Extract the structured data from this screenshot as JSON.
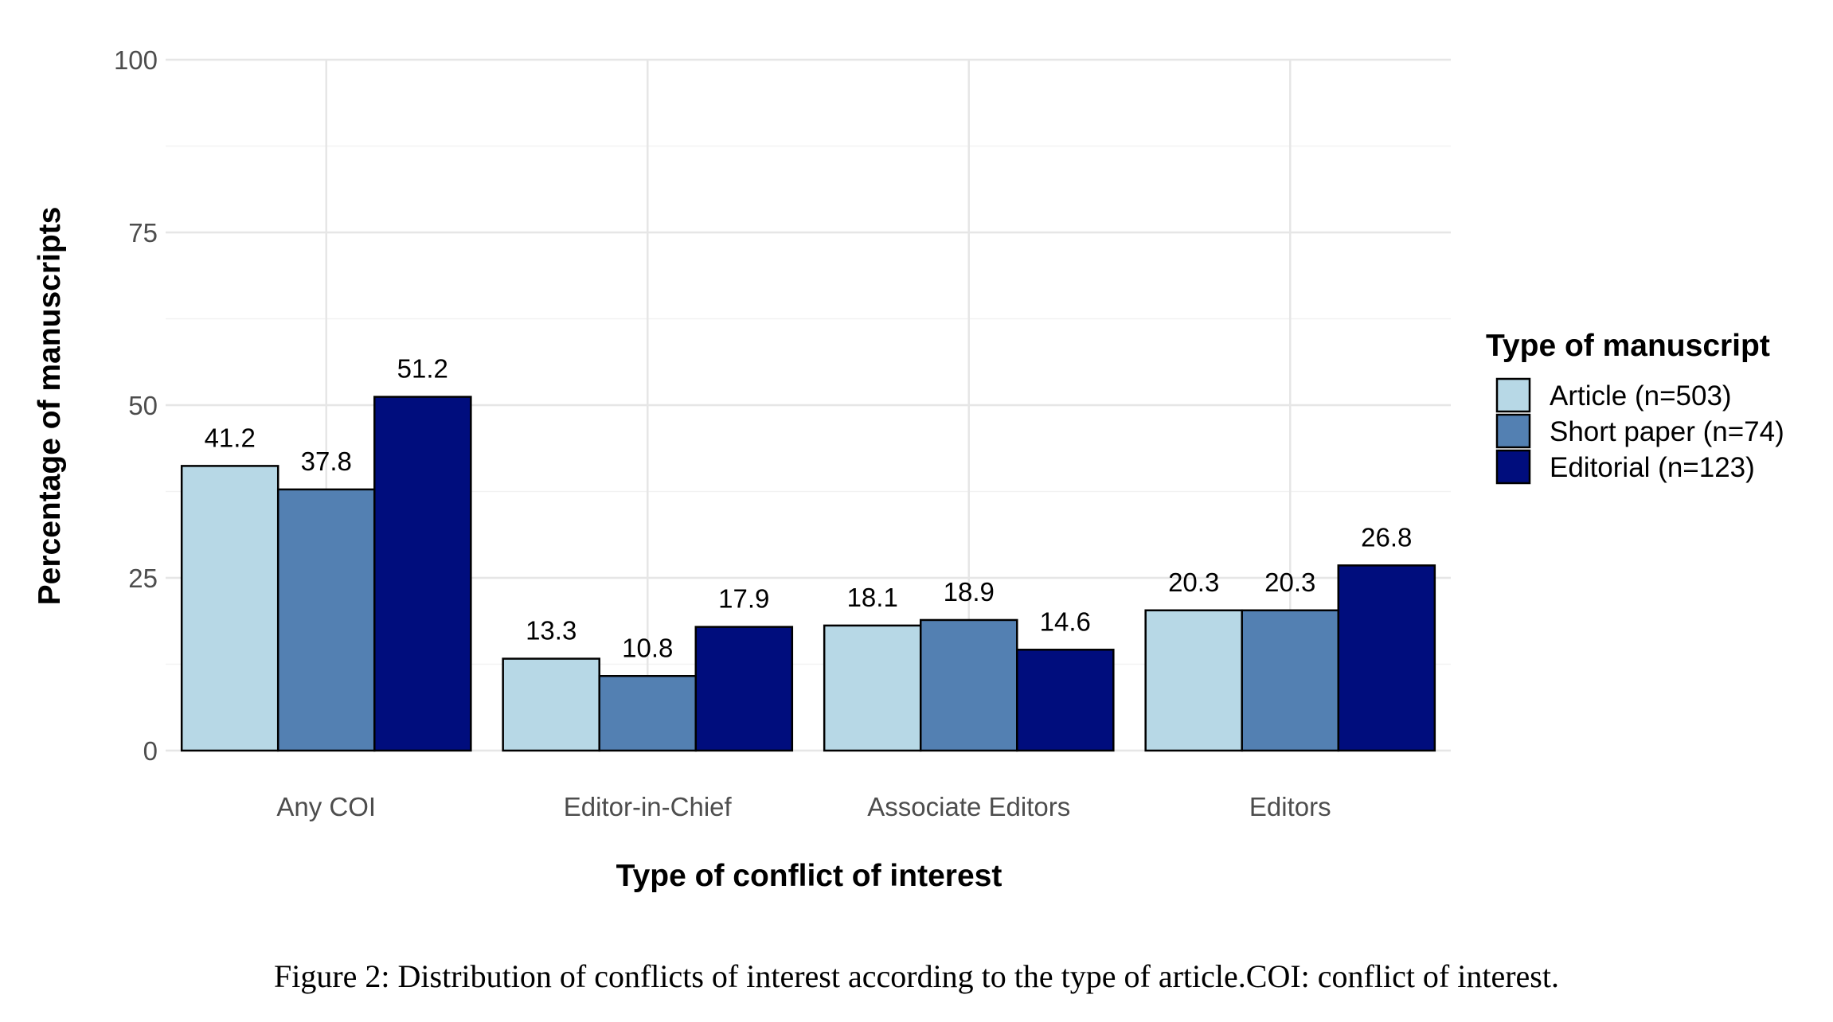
{
  "chart_data": {
    "type": "bar",
    "categories": [
      "Any COI",
      "Editor-in-Chief",
      "Associate Editors",
      "Editors"
    ],
    "series": [
      {
        "name": "Article (n=503)",
        "color": "#b7d8e6",
        "values": [
          41.2,
          13.3,
          18.1,
          20.3
        ]
      },
      {
        "name": "Short paper (n=74)",
        "color": "#5380b2",
        "values": [
          37.8,
          10.8,
          18.9,
          20.3
        ]
      },
      {
        "name": "Editorial (n=123)",
        "color": "#000d7d",
        "values": [
          51.2,
          17.9,
          14.6,
          26.8
        ]
      }
    ],
    "xlabel": "Type of conflict of interest",
    "ylabel": "Percentage of manuscripts",
    "ylim": [
      0,
      100
    ],
    "yticks": [
      0,
      25,
      50,
      75,
      100
    ],
    "grid": true,
    "legend": {
      "title": "Type of manuscript",
      "position": "right"
    }
  },
  "caption": "Figure 2: Distribution of conflicts of interest according to the type of article.COI: conflict of interest."
}
